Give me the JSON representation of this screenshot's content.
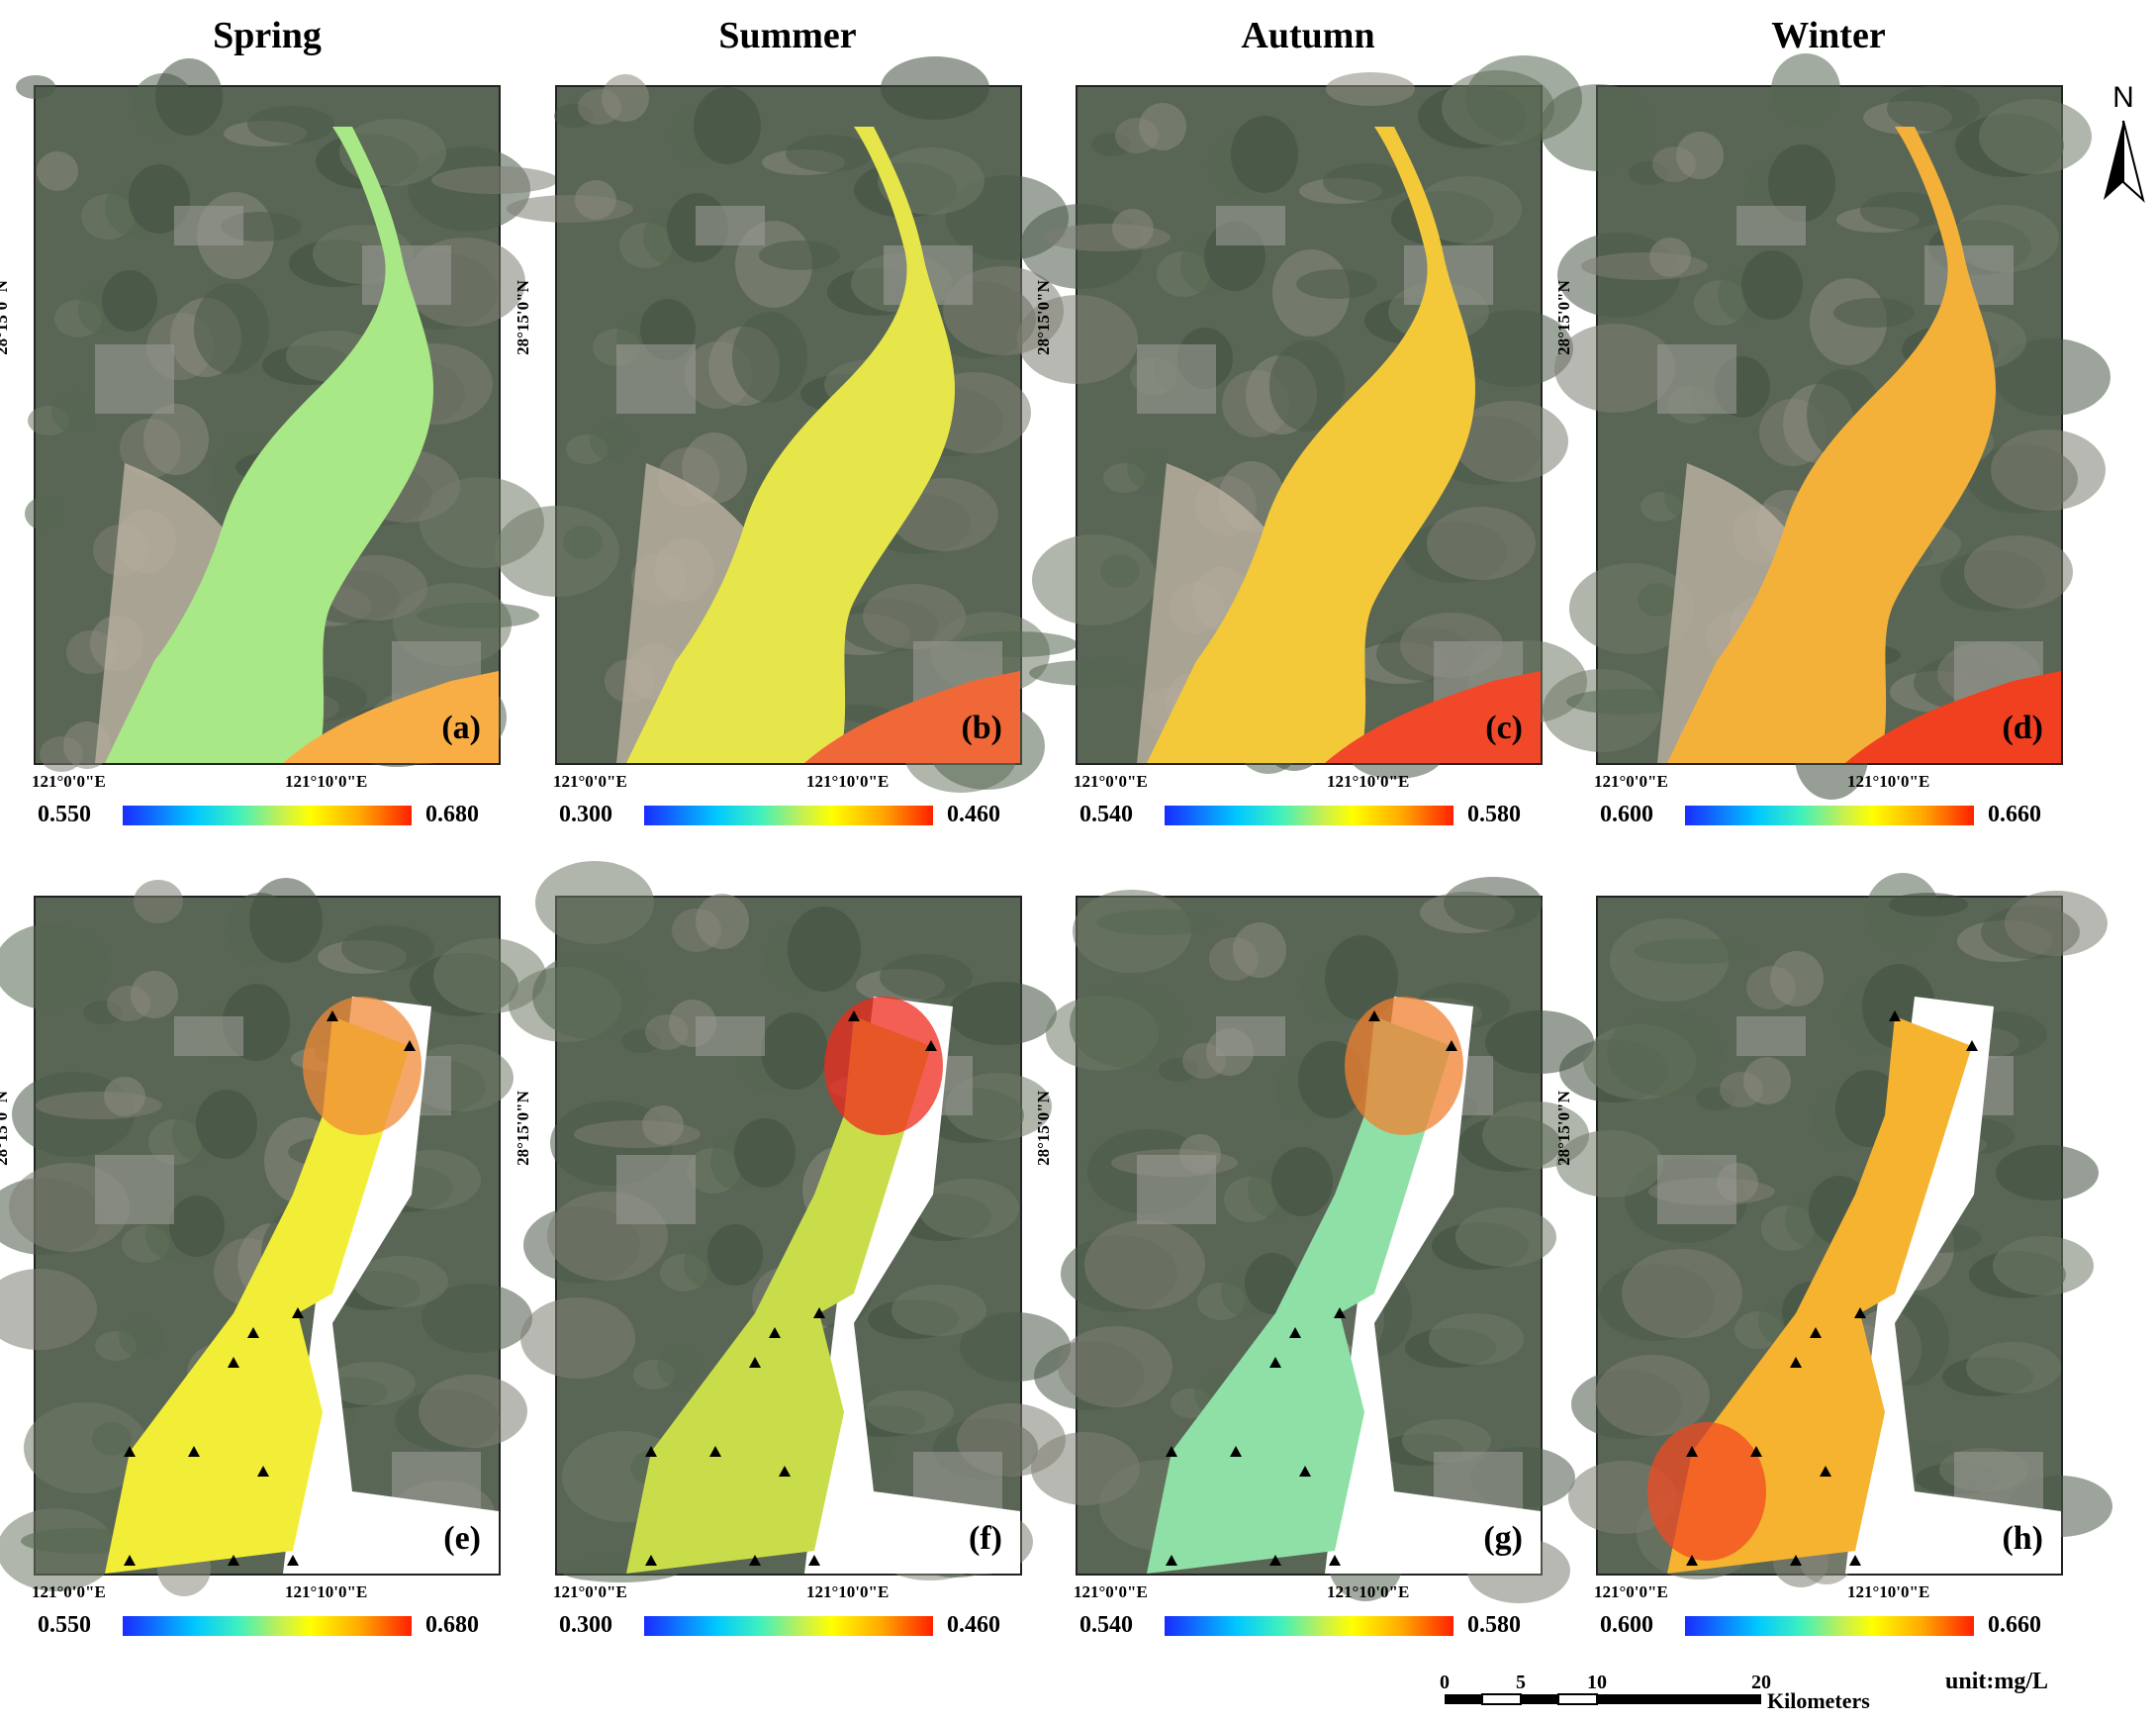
{
  "seasons": [
    "Spring",
    "Summer",
    "Autumn",
    "Winter"
  ],
  "panel_letters": [
    "(a)",
    "(b)",
    "(c)",
    "(d)",
    "(e)",
    "(f)",
    "(g)",
    "(h)"
  ],
  "axes": {
    "lat_label": "28°15'0\"N",
    "lon_label_1": "121°0'0\"E",
    "lon_label_2": "121°10'0\"E"
  },
  "colorbars": [
    {
      "min": "0.550",
      "max": "0.680"
    },
    {
      "min": "0.300",
      "max": "0.460"
    },
    {
      "min": "0.540",
      "max": "0.580"
    },
    {
      "min": "0.600",
      "max": "0.660"
    }
  ],
  "colorbar_ramp": [
    "#1a2bff",
    "#00c8ff",
    "#3ef0c0",
    "#c8f050",
    "#ffff00",
    "#ffaa00",
    "#ff2000"
  ],
  "north_label": "N",
  "scale_bar": {
    "ticks": [
      "0",
      "5",
      "10",
      "20"
    ],
    "units": "Kilometers"
  },
  "unit_text": "unit:mg/L",
  "fills": {
    "remote": [
      "#a9e886",
      "#e6e64a",
      "#f3c93a",
      "#f4b13a"
    ],
    "interp": [
      "#f2ee38",
      "#c9dc4a",
      "#8fe0a6",
      "#f6b330"
    ]
  },
  "accents": {
    "remote": [
      "#f9ad45",
      "#f06838",
      "#f04828",
      "#f04020"
    ],
    "interp": [
      "#f08a35",
      "#f02a1c",
      "#f08030",
      "#f24a22"
    ]
  }
}
